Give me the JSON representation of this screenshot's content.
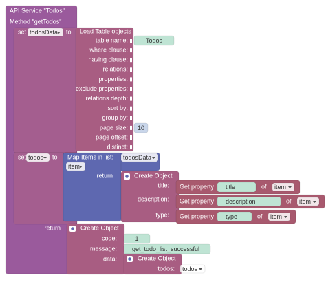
{
  "service": {
    "title": "API Service \"Todos\"",
    "method": "Method \"getTodos\""
  },
  "set_todos_data": {
    "keyword": "set",
    "variable": "todosData",
    "to": "to"
  },
  "load_table": {
    "title": "Load Table objects",
    "params": [
      "table name:",
      "where clause:",
      "having clause:",
      "relations:",
      "properties:",
      "exclude properties:",
      "relations depth:",
      "sort by:",
      "group by:",
      "page size:",
      "page offset:",
      "distinct:"
    ],
    "table_name": "Todos",
    "page_size": 10
  },
  "set_todos": {
    "keyword": "set",
    "variable": "todos",
    "to": "to"
  },
  "map_items": {
    "title": "Map Items",
    "in_list": "in list:",
    "list": "todosData",
    "item": "item",
    "return": "return"
  },
  "map_object": {
    "title": "Create Object",
    "fields": [
      {
        "label": "title:",
        "get": "Get property",
        "property": "title",
        "of": "of",
        "source": "item"
      },
      {
        "label": "description:",
        "get": "Get property",
        "property": "description",
        "of": "of",
        "source": "item"
      },
      {
        "label": "type:",
        "get": "Get property",
        "property": "type",
        "of": "of",
        "source": "item"
      }
    ]
  },
  "result": {
    "label": "return",
    "title": "Create Object",
    "fields": [
      "code:",
      "message:",
      "data:"
    ],
    "code": "1",
    "message": "get_todo_list_successful",
    "data": {
      "title": "Create Object",
      "field": "todos:",
      "variable": "todos"
    }
  }
}
